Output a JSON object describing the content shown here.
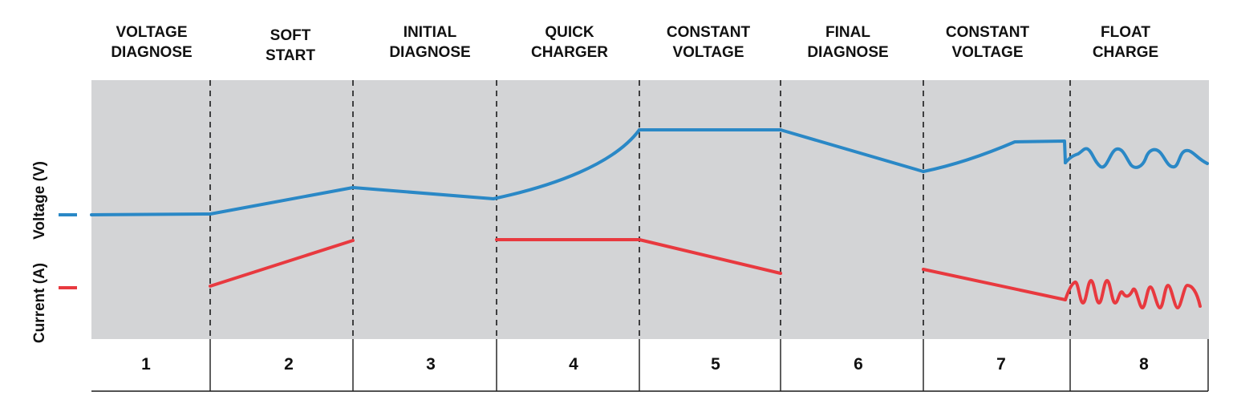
{
  "colors": {
    "voltage": "#2a88c6",
    "current": "#e8393f",
    "chart_background": "#d3d4d6",
    "divider": "#1a1a1a"
  },
  "axis_labels": {
    "voltage": "Voltage (V)",
    "current": "Current (A)"
  },
  "stages": [
    {
      "number": "1",
      "title_lines": [
        "VOLTAGE",
        "DIAGNOSE"
      ]
    },
    {
      "number": "2",
      "title_lines": [
        "SOFT",
        "START"
      ]
    },
    {
      "number": "3",
      "title_lines": [
        "INITIAL",
        "DIAGNOSE"
      ]
    },
    {
      "number": "4",
      "title_lines": [
        "QUICK",
        "CHARGER"
      ]
    },
    {
      "number": "5",
      "title_lines": [
        "CONSTANT",
        "VOLTAGE"
      ]
    },
    {
      "number": "6",
      "title_lines": [
        "FINAL",
        "DIAGNOSE"
      ]
    },
    {
      "number": "7",
      "title_lines": [
        "CONSTANT",
        "VOLTAGE"
      ]
    },
    {
      "number": "8",
      "title_lines": [
        "FLOAT",
        "CHARGE"
      ]
    }
  ]
}
